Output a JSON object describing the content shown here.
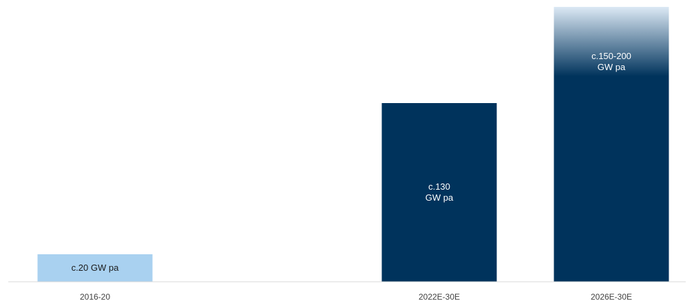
{
  "chart_data": {
    "type": "bar",
    "categories": [
      "2016-20",
      "2022E-30E",
      "2026E-30E"
    ],
    "values": [
      20,
      130,
      200
    ],
    "ranges": [
      null,
      null,
      [
        150,
        200
      ]
    ],
    "data_labels": [
      [
        "c.20 GW pa"
      ],
      [
        "c.130",
        "GW pa"
      ],
      [
        "c.150-200",
        "GW pa"
      ]
    ],
    "title": "",
    "xlabel": "",
    "ylabel": "",
    "ylim": [
      0,
      200
    ],
    "grid": false,
    "legend": "none",
    "colors": {
      "historic_bar": "#a9d1f0",
      "forecast_bar": "#00335c",
      "range_fade_top": "#dce9f5",
      "historic_label": "#1a1a1a",
      "forecast_label": "#ffffff",
      "axis_line": "#d9d9d9"
    },
    "bar_color_keys": [
      "historic_bar",
      "forecast_bar",
      "forecast_bar"
    ],
    "label_color_keys": [
      "historic_label",
      "forecast_label",
      "forecast_label"
    ]
  }
}
